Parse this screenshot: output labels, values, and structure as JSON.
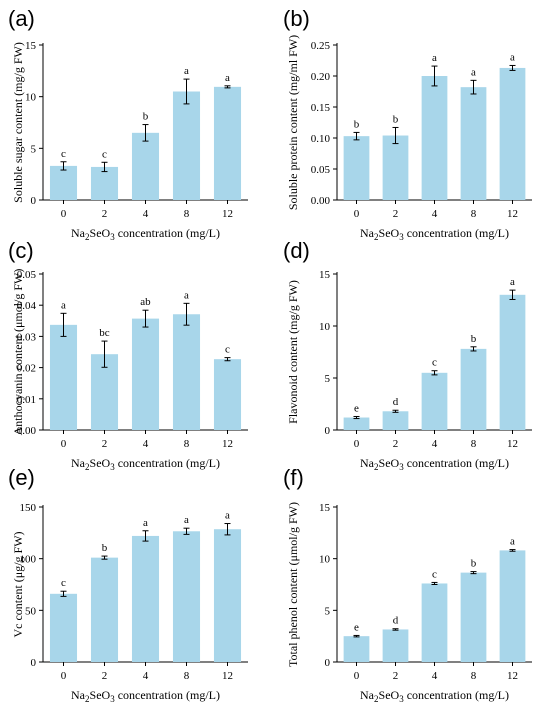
{
  "colors": {
    "bar": "#a8d6ea",
    "axis": "#000000"
  },
  "chart_data": [
    {
      "type": "bar",
      "panel": "(a)",
      "categories": [
        "0",
        "2",
        "4",
        "8",
        "12"
      ],
      "values": [
        3.3,
        3.2,
        6.5,
        10.5,
        10.95
      ],
      "errors": [
        0.4,
        0.45,
        0.8,
        1.2,
        0.1
      ],
      "letters": [
        "c",
        "c",
        "b",
        "a",
        "a"
      ],
      "ylabel": "Soluble sugar content (mg/g FW)",
      "xlabel_main": "Na",
      "xlabel_sub1": "2",
      "xlabel_mid": "SeO",
      "xlabel_sub2": "3",
      "xlabel_end": " concentration (mg/L)",
      "ylim": [
        0,
        15
      ],
      "yticks": [
        "0",
        "5",
        "10",
        "15"
      ]
    },
    {
      "type": "bar",
      "panel": "(b)",
      "categories": [
        "0",
        "2",
        "4",
        "8",
        "12"
      ],
      "values": [
        0.103,
        0.104,
        0.2,
        0.182,
        0.213
      ],
      "errors": [
        0.006,
        0.013,
        0.016,
        0.011,
        0.004
      ],
      "letters": [
        "b",
        "b",
        "a",
        "a",
        "a"
      ],
      "ylabel": "Soluble protein content (mg/ml FW)",
      "xlabel_main": "Na",
      "xlabel_sub1": "2",
      "xlabel_mid": "SeO",
      "xlabel_sub2": "3",
      "xlabel_end": " concentration (mg/L)",
      "ylim": [
        0,
        0.25
      ],
      "yticks": [
        "0.00",
        "0.05",
        "0.10",
        "0.15",
        "0.20",
        "0.25"
      ]
    },
    {
      "type": "bar",
      "panel": "(c)",
      "categories": [
        "0",
        "2",
        "4",
        "8",
        "12"
      ],
      "values": [
        0.0337,
        0.0243,
        0.0357,
        0.0371,
        0.0227
      ],
      "errors": [
        0.0037,
        0.0042,
        0.0027,
        0.0035,
        0.0005
      ],
      "letters": [
        "a",
        "bc",
        "ab",
        "a",
        "c"
      ],
      "ylabel": "Anthocyanin content (μmol/g FW)",
      "xlabel_main": "Na",
      "xlabel_sub1": "2",
      "xlabel_mid": "SeO",
      "xlabel_sub2": "3",
      "xlabel_end": " concentration (mg/L)",
      "ylim": [
        0,
        0.05
      ],
      "yticks": [
        "0.00",
        "0.01",
        "0.02",
        "0.03",
        "0.04",
        "0.05"
      ]
    },
    {
      "type": "bar",
      "panel": "(d)",
      "categories": [
        "0",
        "2",
        "4",
        "8",
        "12"
      ],
      "values": [
        1.2,
        1.8,
        5.5,
        7.8,
        13.0
      ],
      "errors": [
        0.1,
        0.1,
        0.2,
        0.2,
        0.45
      ],
      "letters": [
        "e",
        "d",
        "c",
        "b",
        "a"
      ],
      "ylabel": "Flavonoid content (mg/g FW)",
      "xlabel_main": "Na",
      "xlabel_sub1": "2",
      "xlabel_mid": "SeO",
      "xlabel_sub2": "3",
      "xlabel_end": " concentration (mg/L)",
      "ylim": [
        0,
        15
      ],
      "yticks": [
        "0",
        "5",
        "10",
        "15"
      ]
    },
    {
      "type": "bar",
      "panel": "(e)",
      "categories": [
        "0",
        "2",
        "4",
        "8",
        "12"
      ],
      "values": [
        66,
        101,
        122,
        126.5,
        128.5
      ],
      "errors": [
        2.5,
        1.5,
        5,
        3,
        5.5
      ],
      "letters": [
        "c",
        "b",
        "a",
        "a",
        "a"
      ],
      "ylabel": "Vc content (μg/g FW)",
      "xlabel_main": "Na",
      "xlabel_sub1": "2",
      "xlabel_mid": "SeO",
      "xlabel_sub2": "3",
      "xlabel_end": " concentration (mg/L)",
      "ylim": [
        0,
        150
      ],
      "yticks": [
        "0",
        "50",
        "100",
        "150"
      ]
    },
    {
      "type": "bar",
      "panel": "(f)",
      "categories": [
        "0",
        "2",
        "4",
        "8",
        "12"
      ],
      "values": [
        2.5,
        3.15,
        7.6,
        8.65,
        10.8
      ],
      "errors": [
        0.07,
        0.07,
        0.1,
        0.1,
        0.08
      ],
      "letters": [
        "e",
        "d",
        "c",
        "b",
        "a"
      ],
      "ylabel": "Total phenol content (μmol/g FW)",
      "xlabel_main": "Na",
      "xlabel_sub1": "2",
      "xlabel_mid": "SeO",
      "xlabel_sub2": "3",
      "xlabel_end": " concentration (mg/L)",
      "ylim": [
        0,
        15
      ],
      "yticks": [
        "0",
        "5",
        "10",
        "15"
      ]
    }
  ]
}
